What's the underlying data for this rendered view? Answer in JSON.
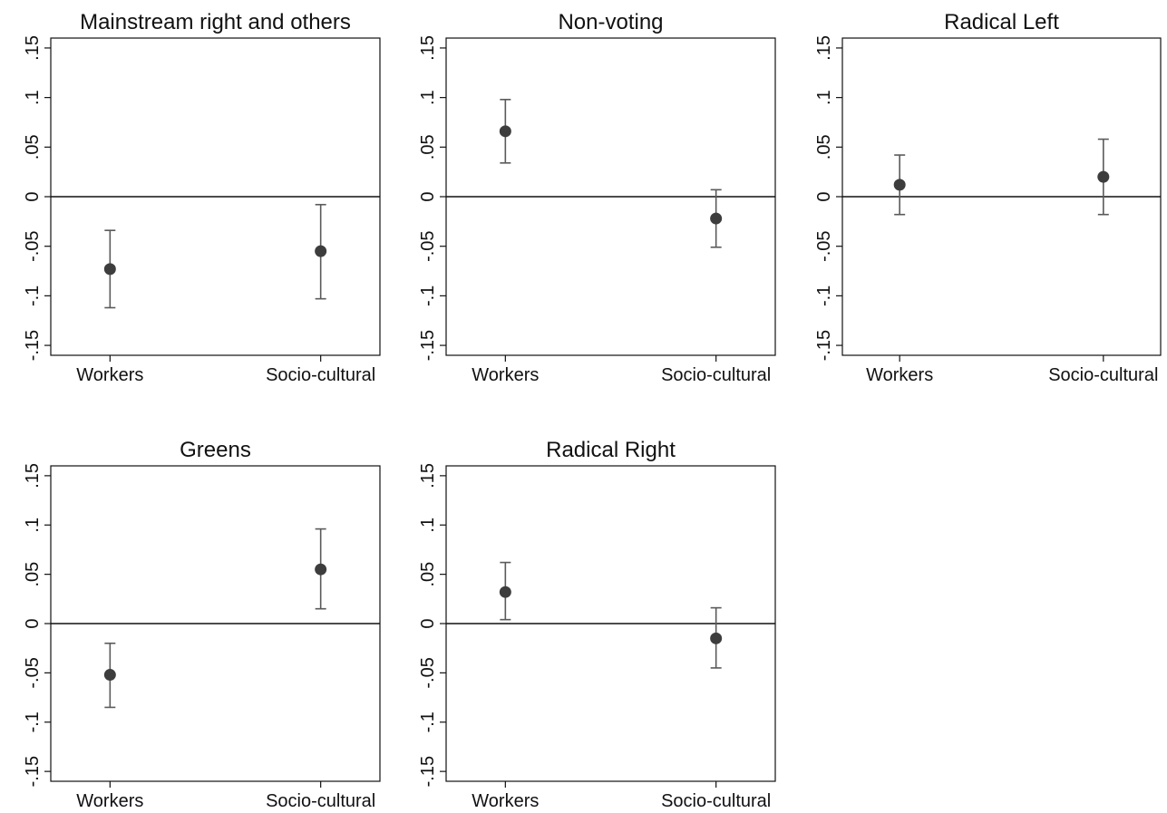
{
  "chart_data": [
    {
      "type": "scatter",
      "title": "Mainstream right and others",
      "categories": [
        "Workers",
        "Socio-cultural"
      ],
      "estimates": [
        -0.073,
        -0.055
      ],
      "ci_low": [
        -0.112,
        -0.103
      ],
      "ci_high": [
        -0.034,
        -0.008
      ],
      "yticks": [
        0.15,
        0.1,
        0.05,
        0,
        -0.05,
        -0.1,
        -0.15
      ],
      "ytick_labels": [
        ".15",
        ".1",
        ".05",
        "0",
        "-.05",
        "-.1",
        "-.15"
      ],
      "ylim": [
        -0.16,
        0.16
      ],
      "reference_line": 0,
      "xlabel": "",
      "ylabel": ""
    },
    {
      "type": "scatter",
      "title": "Non-voting",
      "categories": [
        "Workers",
        "Socio-cultural"
      ],
      "estimates": [
        0.066,
        -0.022
      ],
      "ci_low": [
        0.034,
        -0.051
      ],
      "ci_high": [
        0.098,
        0.007
      ],
      "yticks": [
        0.15,
        0.1,
        0.05,
        0,
        -0.05,
        -0.1,
        -0.15
      ],
      "ytick_labels": [
        ".15",
        ".1",
        ".05",
        "0",
        "-.05",
        "-.1",
        "-.15"
      ],
      "ylim": [
        -0.16,
        0.16
      ],
      "reference_line": 0,
      "xlabel": "",
      "ylabel": ""
    },
    {
      "type": "scatter",
      "title": "Radical Left",
      "categories": [
        "Workers",
        "Socio-cultural"
      ],
      "estimates": [
        0.012,
        0.02
      ],
      "ci_low": [
        -0.018,
        -0.018
      ],
      "ci_high": [
        0.042,
        0.058
      ],
      "yticks": [
        0.15,
        0.1,
        0.05,
        0,
        -0.05,
        -0.1,
        -0.15
      ],
      "ytick_labels": [
        ".15",
        ".1",
        ".05",
        "0",
        "-.05",
        "-.1",
        "-.15"
      ],
      "ylim": [
        -0.16,
        0.16
      ],
      "reference_line": 0,
      "xlabel": "",
      "ylabel": ""
    },
    {
      "type": "scatter",
      "title": "Greens",
      "categories": [
        "Workers",
        "Socio-cultural"
      ],
      "estimates": [
        -0.052,
        0.055
      ],
      "ci_low": [
        -0.085,
        0.015
      ],
      "ci_high": [
        -0.02,
        0.096
      ],
      "yticks": [
        0.15,
        0.1,
        0.05,
        0,
        -0.05,
        -0.1,
        -0.15
      ],
      "ytick_labels": [
        ".15",
        ".1",
        ".05",
        "0",
        "-.05",
        "-.1",
        "-.15"
      ],
      "ylim": [
        -0.16,
        0.16
      ],
      "reference_line": 0,
      "xlabel": "",
      "ylabel": ""
    },
    {
      "type": "scatter",
      "title": "Radical Right",
      "categories": [
        "Workers",
        "Socio-cultural"
      ],
      "estimates": [
        0.032,
        -0.015
      ],
      "ci_low": [
        0.004,
        -0.045
      ],
      "ci_high": [
        0.062,
        0.016
      ],
      "yticks": [
        0.15,
        0.1,
        0.05,
        0,
        -0.05,
        -0.1,
        -0.15
      ],
      "ytick_labels": [
        ".15",
        ".1",
        ".05",
        "0",
        "-.05",
        "-.1",
        "-.15"
      ],
      "ylim": [
        -0.16,
        0.16
      ],
      "reference_line": 0,
      "xlabel": "",
      "ylabel": ""
    }
  ],
  "style": {
    "marker_color": "#3d3d3d",
    "ci_color": "#5a5a5a",
    "axis_color": "#111111",
    "grid": false,
    "legend": "none"
  }
}
